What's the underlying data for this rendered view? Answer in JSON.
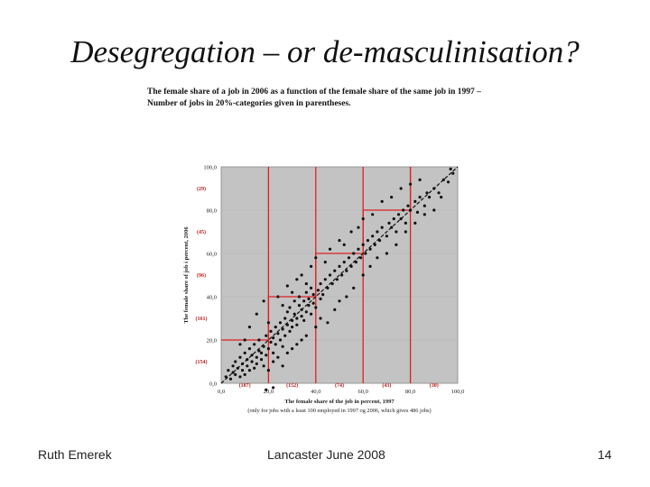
{
  "slide": {
    "title": "Desegregation – or de-masculinisation?",
    "caption_line1": "The female share of a job in 2006 as a function of the female share of the same job in 1997 –",
    "caption_line2": "Number of jobs in 20%-categories given in parentheses.",
    "footer_left": "Ruth Emerek",
    "footer_center": "Lancaster June 2008",
    "page_number": "14"
  },
  "chart_data": {
    "type": "scatter",
    "xlabel": "The female share of the job in percent, 1997",
    "xlabel_note": "(only for jobs with a least 100 employed in 1997 og 2006, which gives 486 jobs)",
    "ylabel": "The female share of job i percent, 2006",
    "xlim": [
      0,
      100
    ],
    "ylim": [
      0,
      100
    ],
    "x_ticks": [
      "0,0",
      "20,0",
      "40,0",
      "60,0",
      "80,0",
      "100,0"
    ],
    "y_ticks": [
      "0,0",
      "20,0",
      "40,0",
      "60,0",
      "80,0",
      "100,0"
    ],
    "x_category_counts": [
      "(187)",
      "(152)",
      "(74)",
      "(43)",
      "(30)"
    ],
    "y_category_counts": [
      "(154)",
      "(161)",
      "(96)",
      "(45)",
      "(29)"
    ],
    "diagonal_line": [
      [
        0,
        0
      ],
      [
        100,
        100
      ]
    ],
    "category_steps": [
      [
        0,
        20
      ],
      [
        20,
        20
      ],
      [
        20,
        40
      ],
      [
        40,
        40
      ],
      [
        40,
        60
      ],
      [
        60,
        60
      ],
      [
        60,
        80
      ],
      [
        80,
        80
      ],
      [
        80,
        100
      ]
    ],
    "category_vertical_lines": [
      20,
      40,
      60,
      80
    ],
    "colors": {
      "plot_bg": "#c3c3c3",
      "points": "#111111",
      "category_lines": "#e02020",
      "label_red": "#b81c1c"
    },
    "series": [
      {
        "name": "jobs",
        "points": [
          [
            2,
            3
          ],
          [
            3,
            6
          ],
          [
            4,
            2
          ],
          [
            5,
            5
          ],
          [
            5,
            8
          ],
          [
            6,
            4
          ],
          [
            6,
            10
          ],
          [
            7,
            7
          ],
          [
            8,
            3
          ],
          [
            8,
            12
          ],
          [
            9,
            6
          ],
          [
            9,
            9
          ],
          [
            10,
            4
          ],
          [
            10,
            14
          ],
          [
            11,
            8
          ],
          [
            11,
            11
          ],
          [
            12,
            6
          ],
          [
            12,
            16
          ],
          [
            13,
            10
          ],
          [
            13,
            13
          ],
          [
            14,
            7
          ],
          [
            14,
            18
          ],
          [
            15,
            12
          ],
          [
            15,
            9
          ],
          [
            16,
            15
          ],
          [
            16,
            20
          ],
          [
            17,
            11
          ],
          [
            17,
            14
          ],
          [
            18,
            17
          ],
          [
            18,
            8
          ],
          [
            19,
            13
          ],
          [
            19,
            22
          ],
          [
            20,
            16
          ],
          [
            21,
            19
          ],
          [
            21,
            24
          ],
          [
            22,
            14
          ],
          [
            22,
            21
          ],
          [
            23,
            26
          ],
          [
            23,
            18
          ],
          [
            24,
            23
          ],
          [
            25,
            20
          ],
          [
            25,
            28
          ],
          [
            26,
            25
          ],
          [
            26,
            17
          ],
          [
            27,
            30
          ],
          [
            27,
            22
          ],
          [
            28,
            27
          ],
          [
            28,
            33
          ],
          [
            29,
            24
          ],
          [
            29,
            35
          ],
          [
            30,
            29
          ],
          [
            30,
            26
          ],
          [
            31,
            32
          ],
          [
            31,
            38
          ],
          [
            32,
            30
          ],
          [
            32,
            27
          ],
          [
            33,
            36
          ],
          [
            33,
            40
          ],
          [
            34,
            31
          ],
          [
            34,
            34
          ],
          [
            35,
            38
          ],
          [
            35,
            29
          ],
          [
            36,
            33
          ],
          [
            36,
            42
          ],
          [
            37,
            36
          ],
          [
            37,
            39
          ],
          [
            38,
            32
          ],
          [
            38,
            44
          ],
          [
            39,
            37
          ],
          [
            39,
            41
          ],
          [
            40,
            35
          ],
          [
            41,
            43
          ],
          [
            42,
            39
          ],
          [
            42,
            46
          ],
          [
            43,
            41
          ],
          [
            44,
            48
          ],
          [
            45,
            44
          ],
          [
            46,
            50
          ],
          [
            47,
            46
          ],
          [
            48,
            52
          ],
          [
            49,
            48
          ],
          [
            50,
            54
          ],
          [
            51,
            50
          ],
          [
            52,
            56
          ],
          [
            53,
            52
          ],
          [
            54,
            58
          ],
          [
            55,
            54
          ],
          [
            56,
            60
          ],
          [
            57,
            56
          ],
          [
            58,
            62
          ],
          [
            59,
            58
          ],
          [
            60,
            64
          ],
          [
            61,
            60
          ],
          [
            62,
            66
          ],
          [
            63,
            62
          ],
          [
            64,
            68
          ],
          [
            65,
            64
          ],
          [
            66,
            70
          ],
          [
            67,
            66
          ],
          [
            68,
            72
          ],
          [
            70,
            68
          ],
          [
            71,
            74
          ],
          [
            72,
            72
          ],
          [
            73,
            76
          ],
          [
            74,
            70
          ],
          [
            75,
            78
          ],
          [
            76,
            76
          ],
          [
            77,
            80
          ],
          [
            78,
            74
          ],
          [
            79,
            82
          ],
          [
            80,
            80
          ],
          [
            82,
            84
          ],
          [
            83,
            79
          ],
          [
            84,
            86
          ],
          [
            86,
            82
          ],
          [
            87,
            88
          ],
          [
            88,
            86
          ],
          [
            90,
            90
          ],
          [
            92,
            88
          ],
          [
            94,
            94
          ],
          [
            96,
            93
          ],
          [
            98,
            97
          ],
          [
            97,
            99
          ],
          [
            12,
            26
          ],
          [
            15,
            32
          ],
          [
            18,
            38
          ],
          [
            20,
            28
          ],
          [
            24,
            40
          ],
          [
            26,
            36
          ],
          [
            28,
            45
          ],
          [
            30,
            42
          ],
          [
            32,
            48
          ],
          [
            34,
            50
          ],
          [
            36,
            46
          ],
          [
            38,
            54
          ],
          [
            40,
            58
          ],
          [
            44,
            56
          ],
          [
            46,
            62
          ],
          [
            50,
            66
          ],
          [
            52,
            64
          ],
          [
            55,
            70
          ],
          [
            58,
            72
          ],
          [
            60,
            76
          ],
          [
            64,
            78
          ],
          [
            68,
            84
          ],
          [
            72,
            86
          ],
          [
            76,
            90
          ],
          [
            80,
            92
          ],
          [
            84,
            94
          ],
          [
            20,
            6
          ],
          [
            22,
            10
          ],
          [
            24,
            12
          ],
          [
            26,
            8
          ],
          [
            28,
            14
          ],
          [
            30,
            16
          ],
          [
            32,
            18
          ],
          [
            34,
            20
          ],
          [
            36,
            22
          ],
          [
            40,
            26
          ],
          [
            42,
            30
          ],
          [
            45,
            28
          ],
          [
            48,
            34
          ],
          [
            50,
            38
          ],
          [
            53,
            40
          ],
          [
            56,
            44
          ],
          [
            60,
            50
          ],
          [
            63,
            54
          ],
          [
            66,
            58
          ],
          [
            70,
            60
          ],
          [
            74,
            64
          ],
          [
            78,
            70
          ],
          [
            82,
            74
          ],
          [
            86,
            78
          ],
          [
            90,
            80
          ],
          [
            93,
            86
          ],
          [
            22,
            -2
          ],
          [
            19,
            -3
          ],
          [
            8,
            18
          ],
          [
            10,
            20
          ]
        ]
      }
    ]
  }
}
